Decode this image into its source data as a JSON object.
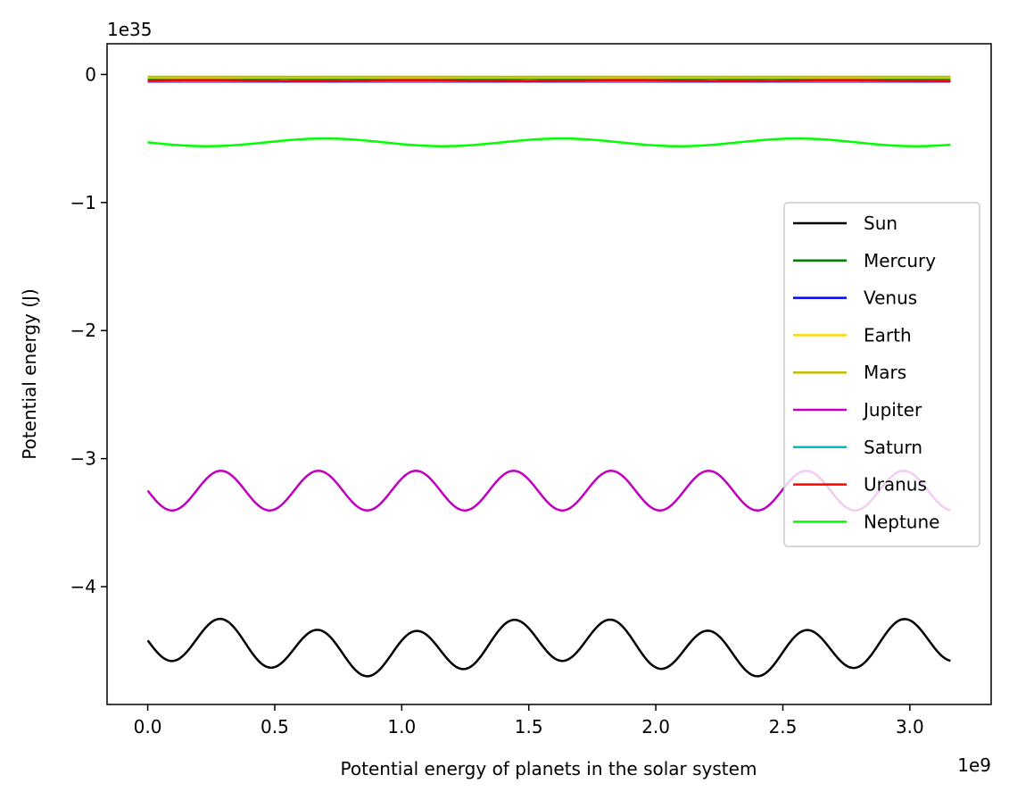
{
  "chart_data": {
    "type": "line",
    "xlabel": "Potential energy of planets in the solar system",
    "ylabel": "Potential energy (J)",
    "x_offset_label": "1e9",
    "y_offset_label": "1e35",
    "x_scale": 1000000000.0,
    "y_scale": 1e+35,
    "xlim": [
      -0.16,
      3.32
    ],
    "ylim": [
      -4.92,
      0.24
    ],
    "x_ticks": [
      0.0,
      0.5,
      1.0,
      1.5,
      2.0,
      2.5,
      3.0
    ],
    "x_tick_labels": [
      "0.0",
      "0.5",
      "1.0",
      "1.5",
      "2.0",
      "2.5",
      "3.0"
    ],
    "y_ticks": [
      0,
      -1,
      -2,
      -3,
      -4
    ],
    "y_tick_labels": [
      "0",
      "−1",
      "−2",
      "−3",
      "−4"
    ],
    "x_range": [
      0.0,
      3.16
    ],
    "grid": false,
    "legend_position": "center-right",
    "series": [
      {
        "name": "Sun",
        "color": "#000000",
        "base": -4.47,
        "waves": [
          [
            -0.17,
            0.384,
            0
          ],
          [
            0.06,
            1.5,
            1.0
          ]
        ]
      },
      {
        "name": "Mercury",
        "color": "#007f00",
        "base": -0.036,
        "waves": [
          [
            0.004,
            0.24,
            0
          ]
        ]
      },
      {
        "name": "Venus",
        "color": "#0000ff",
        "base": -0.055,
        "waves": []
      },
      {
        "name": "Earth",
        "color": "#ffd700",
        "base": -0.025,
        "waves": []
      },
      {
        "name": "Mars",
        "color": "#bfbf00",
        "base": -0.018,
        "waves": []
      },
      {
        "name": "Jupiter",
        "color": "#bf00bf",
        "base": -3.25,
        "waves": [
          [
            -0.155,
            0.384,
            0
          ]
        ]
      },
      {
        "name": "Saturn",
        "color": "#00bfbf",
        "base": -0.05,
        "waves": []
      },
      {
        "name": "Uranus",
        "color": "#ff0000",
        "base": -0.048,
        "waves": [
          [
            0.004,
            0.84,
            0
          ]
        ]
      },
      {
        "name": "Neptune",
        "color": "#00ff00",
        "base": -0.53,
        "waves": [
          [
            -0.03,
            0.93,
            0
          ]
        ]
      }
    ]
  }
}
